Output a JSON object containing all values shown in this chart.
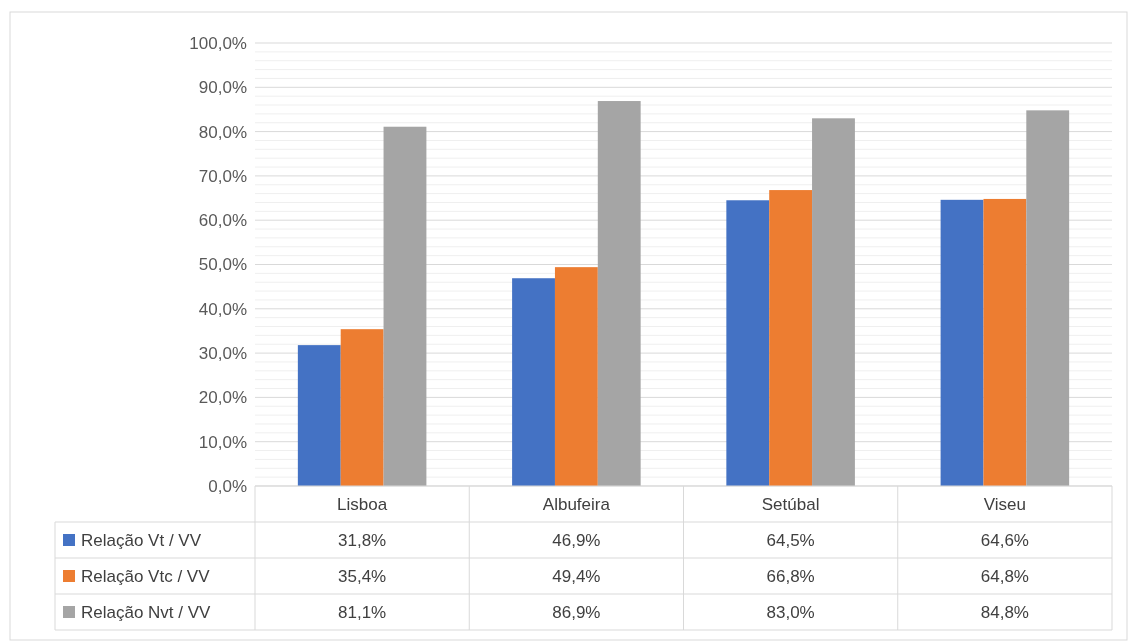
{
  "chart_data": {
    "type": "bar",
    "categories": [
      "Lisboa",
      "Albufeira",
      "Setúbal",
      "Viseu"
    ],
    "series": [
      {
        "name": "Relação Vt / VV",
        "color": "#4472c4",
        "values": [
          31.8,
          46.9,
          64.5,
          64.6
        ],
        "value_labels": [
          "31,8%",
          "46,9%",
          "64,5%",
          "64,6%"
        ]
      },
      {
        "name": "Relação Vtc / VV",
        "color": "#ed7d31",
        "values": [
          35.4,
          49.4,
          66.8,
          64.8
        ],
        "value_labels": [
          "35,4%",
          "49,4%",
          "66,8%",
          "64,8%"
        ]
      },
      {
        "name": "Relação Nvt / VV",
        "color": "#a5a5a5",
        "values": [
          81.1,
          86.9,
          83.0,
          84.8
        ],
        "value_labels": [
          "81,1%",
          "86,9%",
          "83,0%",
          "84,8%"
        ]
      }
    ],
    "ylim": [
      0,
      100
    ],
    "yticks": [
      {
        "value": 0,
        "label": "0,0%"
      },
      {
        "value": 2,
        "label": null
      },
      {
        "value": 4,
        "label": null
      },
      {
        "value": 6,
        "label": null
      },
      {
        "value": 8,
        "label": null
      },
      {
        "value": 10,
        "label": "10,0%"
      },
      {
        "value": 12,
        "label": null
      },
      {
        "value": 14,
        "label": null
      },
      {
        "value": 16,
        "label": null
      },
      {
        "value": 18,
        "label": null
      },
      {
        "value": 20,
        "label": "20,0%"
      },
      {
        "value": 22,
        "label": null
      },
      {
        "value": 24,
        "label": null
      },
      {
        "value": 26,
        "label": null
      },
      {
        "value": 28,
        "label": null
      },
      {
        "value": 30,
        "label": "30,0%"
      },
      {
        "value": 32,
        "label": null
      },
      {
        "value": 34,
        "label": null
      },
      {
        "value": 36,
        "label": null
      },
      {
        "value": 38,
        "label": null
      },
      {
        "value": 40,
        "label": "40,0%"
      },
      {
        "value": 42,
        "label": null
      },
      {
        "value": 44,
        "label": null
      },
      {
        "value": 46,
        "label": null
      },
      {
        "value": 48,
        "label": null
      },
      {
        "value": 50,
        "label": "50,0%"
      },
      {
        "value": 52,
        "label": null
      },
      {
        "value": 54,
        "label": null
      },
      {
        "value": 56,
        "label": null
      },
      {
        "value": 58,
        "label": null
      },
      {
        "value": 60,
        "label": "60,0%"
      },
      {
        "value": 62,
        "label": null
      },
      {
        "value": 64,
        "label": null
      },
      {
        "value": 66,
        "label": null
      },
      {
        "value": 68,
        "label": null
      },
      {
        "value": 70,
        "label": "70,0%"
      },
      {
        "value": 72,
        "label": null
      },
      {
        "value": 74,
        "label": null
      },
      {
        "value": 76,
        "label": null
      },
      {
        "value": 78,
        "label": null
      },
      {
        "value": 80,
        "label": "80,0%"
      },
      {
        "value": 82,
        "label": null
      },
      {
        "value": 84,
        "label": null
      },
      {
        "value": 86,
        "label": null
      },
      {
        "value": 88,
        "label": null
      },
      {
        "value": 90,
        "label": "90,0%"
      },
      {
        "value": 92,
        "label": null
      },
      {
        "value": 94,
        "label": null
      },
      {
        "value": 96,
        "label": null
      },
      {
        "value": 98,
        "label": null
      },
      {
        "value": 100,
        "label": "100,0%"
      }
    ],
    "grid": true,
    "legend": "bottom"
  }
}
